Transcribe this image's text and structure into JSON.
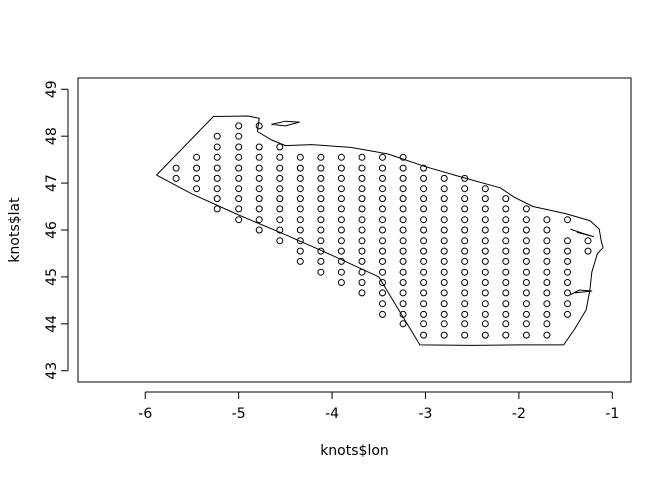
{
  "chart_data": {
    "type": "scatter",
    "title": "",
    "xlabel": "knots$lon",
    "ylabel": "knots$lat",
    "xlim": [
      -6.72,
      -0.8
    ],
    "ylim": [
      42.76,
      49.24
    ],
    "xticks": [
      -6,
      -5,
      -4,
      -3,
      -2,
      -1
    ],
    "yticks": [
      43,
      44,
      45,
      46,
      47,
      48,
      49
    ],
    "grid": false,
    "outline": [
      [
        -5.88,
        47.17
      ],
      [
        -5.5,
        46.77
      ],
      [
        -5.0,
        46.32
      ],
      [
        -4.5,
        45.9
      ],
      [
        -4.0,
        45.46
      ],
      [
        -3.5,
        45.0
      ],
      [
        -3.06,
        43.55
      ],
      [
        -2.5,
        43.54
      ],
      [
        -2.0,
        43.55
      ],
      [
        -1.52,
        43.55
      ],
      [
        -1.4,
        43.9
      ],
      [
        -1.28,
        44.3
      ],
      [
        -1.24,
        44.72
      ],
      [
        -1.22,
        45.1
      ],
      [
        -1.16,
        45.5
      ],
      [
        -1.1,
        45.62
      ],
      [
        -1.12,
        45.78
      ],
      [
        -1.14,
        46.02
      ],
      [
        -1.24,
        46.2
      ],
      [
        -1.5,
        46.35
      ],
      [
        -1.85,
        46.5
      ],
      [
        -2.05,
        46.7
      ],
      [
        -2.2,
        46.9
      ],
      [
        -2.6,
        47.12
      ],
      [
        -3.0,
        47.35
      ],
      [
        -3.4,
        47.62
      ],
      [
        -3.8,
        47.76
      ],
      [
        -4.22,
        47.82
      ],
      [
        -4.5,
        47.8
      ],
      [
        -4.65,
        47.92
      ],
      [
        -4.8,
        48.1
      ],
      [
        -4.78,
        48.38
      ],
      [
        -4.9,
        48.43
      ],
      [
        -5.27,
        48.42
      ],
      [
        -5.88,
        47.17
      ]
    ],
    "inlets": [
      [
        [
          -4.65,
          48.25
        ],
        [
          -4.5,
          48.32
        ],
        [
          -4.35,
          48.3
        ],
        [
          -4.5,
          48.22
        ],
        [
          -4.65,
          48.25
        ]
      ],
      [
        [
          -1.45,
          46.02
        ],
        [
          -1.3,
          45.92
        ],
        [
          -1.2,
          45.86
        ],
        [
          -1.38,
          45.95
        ]
      ],
      [
        [
          -1.45,
          44.62
        ],
        [
          -1.35,
          44.72
        ],
        [
          -1.22,
          44.7
        ],
        [
          -1.4,
          44.66
        ]
      ]
    ],
    "columns": [
      {
        "lon": -5.67,
        "lats": [
          47.1,
          47.32
        ]
      },
      {
        "lon": -5.45,
        "lats": [
          46.88,
          47.1,
          47.32,
          47.55
        ]
      },
      {
        "lon": -5.23,
        "lats": [
          46.45,
          46.67,
          46.88,
          47.1,
          47.32,
          47.55,
          47.77,
          48.0
        ]
      },
      {
        "lon": -5.0,
        "lats": [
          46.22,
          46.45,
          46.67,
          46.88,
          47.1,
          47.32,
          47.55,
          47.77,
          48.0,
          48.22
        ]
      },
      {
        "lon": -4.78,
        "lats": [
          46.0,
          46.22,
          46.45,
          46.67,
          46.88,
          47.1,
          47.32,
          47.55,
          47.77,
          48.22
        ]
      },
      {
        "lon": -4.56,
        "lats": [
          45.77,
          46.0,
          46.22,
          46.45,
          46.67,
          46.88,
          47.1,
          47.32,
          47.55,
          47.77
        ]
      },
      {
        "lon": -4.34,
        "lats": [
          45.33,
          45.55,
          45.77,
          46.0,
          46.22,
          46.45,
          46.67,
          46.88,
          47.1,
          47.32,
          47.55
        ]
      },
      {
        "lon": -4.12,
        "lats": [
          45.1,
          45.33,
          45.55,
          45.77,
          46.0,
          46.22,
          46.45,
          46.67,
          46.88,
          47.1,
          47.32,
          47.55
        ]
      },
      {
        "lon": -3.9,
        "lats": [
          44.88,
          45.1,
          45.33,
          45.55,
          45.77,
          46.0,
          46.22,
          46.45,
          46.67,
          46.88,
          47.1,
          47.32,
          47.55
        ]
      },
      {
        "lon": -3.68,
        "lats": [
          44.66,
          44.88,
          45.1,
          45.33,
          45.55,
          45.77,
          46.0,
          46.22,
          46.45,
          46.67,
          46.88,
          47.1,
          47.32,
          47.55
        ]
      },
      {
        "lon": -3.46,
        "lats": [
          44.2,
          44.43,
          44.66,
          44.88,
          45.1,
          45.33,
          45.55,
          45.77,
          46.0,
          46.22,
          46.45,
          46.67,
          46.88,
          47.1,
          47.32,
          47.55
        ]
      },
      {
        "lon": -3.24,
        "lats": [
          44.0,
          44.2,
          44.43,
          44.66,
          44.88,
          45.1,
          45.33,
          45.55,
          45.77,
          46.0,
          46.22,
          46.45,
          46.67,
          46.88,
          47.1,
          47.32,
          47.55
        ]
      },
      {
        "lon": -3.02,
        "lats": [
          43.76,
          44.0,
          44.2,
          44.43,
          44.66,
          44.88,
          45.1,
          45.33,
          45.55,
          45.77,
          46.0,
          46.22,
          46.45,
          46.67,
          46.88,
          47.1,
          47.32
        ]
      },
      {
        "lon": -2.8,
        "lats": [
          43.76,
          44.0,
          44.2,
          44.43,
          44.66,
          44.88,
          45.1,
          45.33,
          45.55,
          45.77,
          46.0,
          46.22,
          46.45,
          46.67,
          46.88,
          47.1
        ]
      },
      {
        "lon": -2.58,
        "lats": [
          43.76,
          44.0,
          44.2,
          44.43,
          44.66,
          44.88,
          45.1,
          45.33,
          45.55,
          45.77,
          46.0,
          46.22,
          46.45,
          46.67,
          46.88,
          47.1
        ]
      },
      {
        "lon": -2.36,
        "lats": [
          43.76,
          44.0,
          44.2,
          44.43,
          44.66,
          44.88,
          45.1,
          45.33,
          45.55,
          45.77,
          46.0,
          46.22,
          46.45,
          46.67,
          46.88
        ]
      },
      {
        "lon": -2.14,
        "lats": [
          43.76,
          44.0,
          44.2,
          44.43,
          44.66,
          44.88,
          45.1,
          45.33,
          45.55,
          45.77,
          46.0,
          46.22,
          46.45,
          46.67
        ]
      },
      {
        "lon": -1.92,
        "lats": [
          43.76,
          44.0,
          44.2,
          44.43,
          44.66,
          44.88,
          45.1,
          45.33,
          45.55,
          45.77,
          46.0,
          46.22,
          46.45
        ]
      },
      {
        "lon": -1.7,
        "lats": [
          43.76,
          44.0,
          44.2,
          44.43,
          44.66,
          44.88,
          45.1,
          45.33,
          45.55,
          45.77,
          46.0,
          46.22
        ]
      },
      {
        "lon": -1.48,
        "lats": [
          44.2,
          44.43,
          44.66,
          44.88,
          45.1,
          45.33,
          45.55,
          45.77,
          46.22
        ]
      },
      {
        "lon": -1.26,
        "lats": [
          45.55,
          45.77
        ]
      }
    ]
  }
}
